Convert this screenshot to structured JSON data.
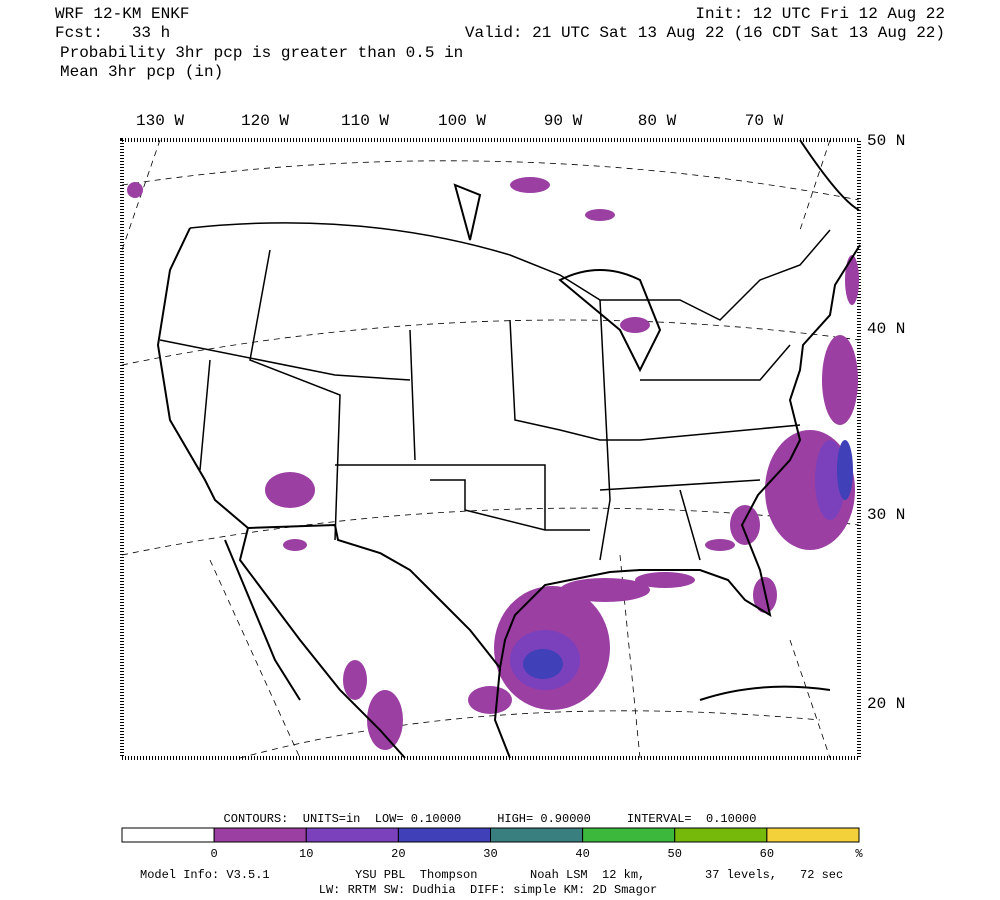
{
  "header": {
    "title": "WRF 12-KM ENKF",
    "fcst": "Fcst:   33 h",
    "init": "Init: 12 UTC Fri 12 Aug 22",
    "valid": "Valid: 21 UTC Sat 13 Aug 22 (16 CDT Sat 13 Aug 22)",
    "field": "Probability 3hr pcp is greater than 0.5 in",
    "contour_field": "Mean 3hr pcp (in)"
  },
  "map": {
    "lon_labels": [
      "130 W",
      "120 W",
      "110 W",
      "100 W",
      "90 W",
      "80 W",
      "70 W"
    ],
    "lat_labels": [
      "50 N",
      "40 N",
      "30 N",
      "20 N"
    ]
  },
  "contours": "CONTOURS:  UNITS=in  LOW= 0.10000     HIGH= 0.90000     INTERVAL=  0.10000",
  "colorbar": {
    "colors": [
      "#ffffff",
      "#9b3fa3",
      "#7b41bd",
      "#4040b8",
      "#3a7f80",
      "#3cb93c",
      "#76b90b",
      "#f2d13a"
    ],
    "labels": [
      "0",
      "10",
      "20",
      "30",
      "40",
      "50",
      "60",
      "%"
    ]
  },
  "footer": {
    "model": "Model Info: V3.5.1",
    "pbl": "YSU PBL  Thompson",
    "lsm": "Noah LSM  12 km,",
    "levels": "37 levels,",
    "step": "72 sec",
    "physics": "LW: RRTM SW: Dudhia  DIFF: simple KM: 2D Smagor"
  }
}
